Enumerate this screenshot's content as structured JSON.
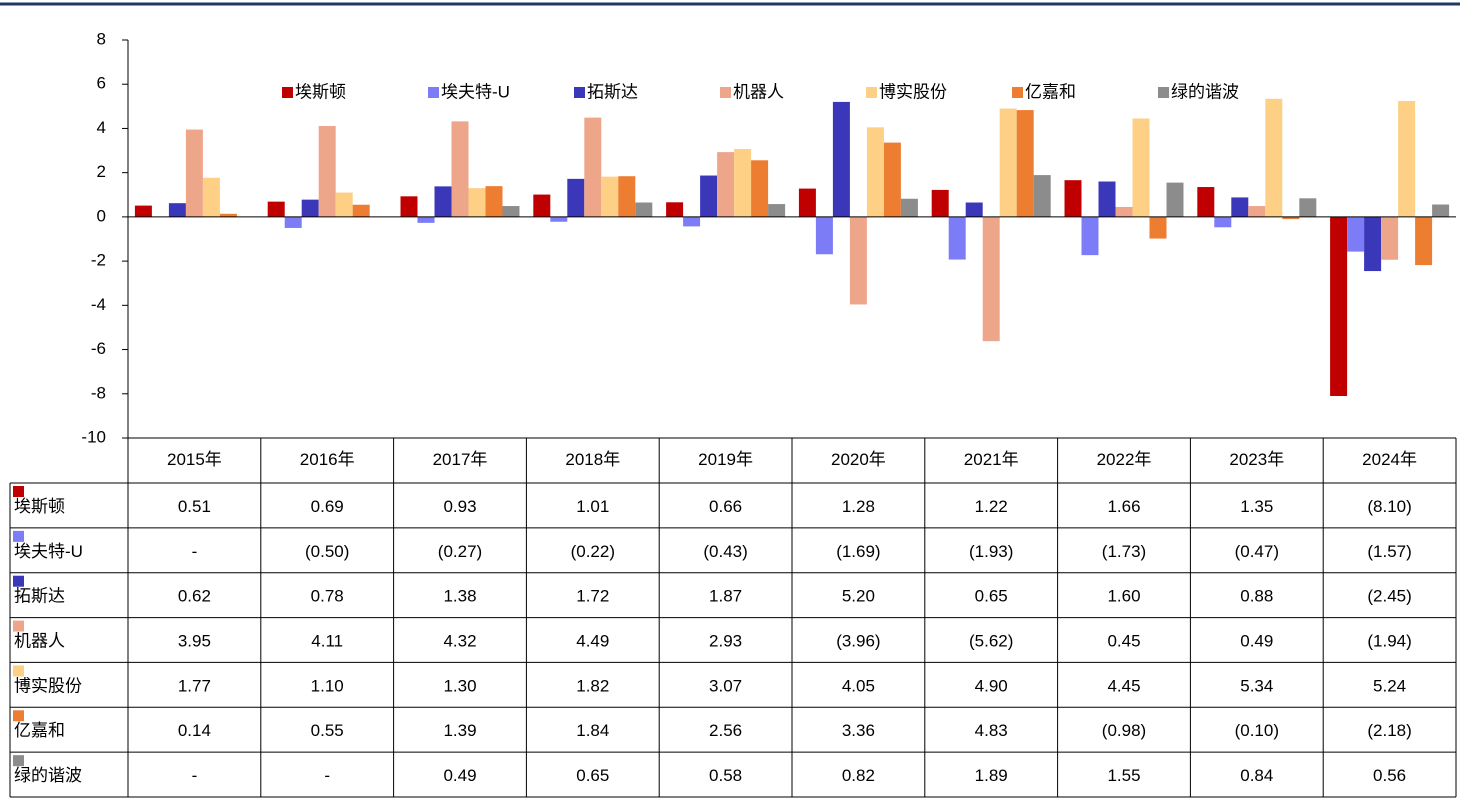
{
  "chart_data": {
    "type": "bar",
    "categories": [
      "2015年",
      "2016年",
      "2017年",
      "2018年",
      "2019年",
      "2020年",
      "2021年",
      "2022年",
      "2023年",
      "2024年"
    ],
    "ylim": [
      -10,
      8
    ],
    "yticks": [
      -10,
      -8,
      -6,
      -4,
      -2,
      0,
      2,
      4,
      6,
      8
    ],
    "series": [
      {
        "name": "埃斯顿",
        "color": "#c00000",
        "values": [
          0.51,
          0.69,
          0.93,
          1.01,
          0.66,
          1.28,
          1.22,
          1.66,
          1.35,
          -8.1
        ],
        "value_labels": [
          "0.51",
          "0.69",
          "0.93",
          "1.01",
          "0.66",
          "1.28",
          "1.22",
          "1.66",
          "1.35",
          "(8.10)"
        ]
      },
      {
        "name": "埃夫特-U",
        "color": "#7c7cf6",
        "values": [
          null,
          -0.5,
          -0.27,
          -0.22,
          -0.43,
          -1.69,
          -1.93,
          -1.73,
          -0.47,
          -1.57
        ],
        "value_labels": [
          "-",
          "(0.50)",
          "(0.27)",
          "(0.22)",
          "(0.43)",
          "(1.69)",
          "(1.93)",
          "(1.73)",
          "(0.47)",
          "(1.57)"
        ]
      },
      {
        "name": "拓斯达",
        "color": "#3b37b9",
        "values": [
          0.62,
          0.78,
          1.38,
          1.72,
          1.87,
          5.2,
          0.65,
          1.6,
          0.88,
          -2.45
        ],
        "value_labels": [
          "0.62",
          "0.78",
          "1.38",
          "1.72",
          "1.87",
          "5.20",
          "0.65",
          "1.60",
          "0.88",
          "(2.45)"
        ]
      },
      {
        "name": "机器人",
        "color": "#eea68b",
        "values": [
          3.95,
          4.11,
          4.32,
          4.49,
          2.93,
          -3.96,
          -5.62,
          0.45,
          0.49,
          -1.94
        ],
        "value_labels": [
          "3.95",
          "4.11",
          "4.32",
          "4.49",
          "2.93",
          "(3.96)",
          "(5.62)",
          "0.45",
          "0.49",
          "(1.94)"
        ]
      },
      {
        "name": "博实股份",
        "color": "#fdd086",
        "values": [
          1.77,
          1.1,
          1.3,
          1.82,
          3.07,
          4.05,
          4.9,
          4.45,
          5.34,
          5.24
        ],
        "value_labels": [
          "1.77",
          "1.10",
          "1.30",
          "1.82",
          "3.07",
          "4.05",
          "4.90",
          "4.45",
          "5.34",
          "5.24"
        ]
      },
      {
        "name": "亿嘉和",
        "color": "#ed7d31",
        "values": [
          0.14,
          0.55,
          1.39,
          1.84,
          2.56,
          3.36,
          4.83,
          -0.98,
          -0.1,
          -2.18
        ],
        "value_labels": [
          "0.14",
          "0.55",
          "1.39",
          "1.84",
          "2.56",
          "3.36",
          "4.83",
          "(0.98)",
          "(0.10)",
          "(2.18)"
        ]
      },
      {
        "name": "绿的谐波",
        "color": "#8c8c8c",
        "values": [
          null,
          null,
          0.49,
          0.65,
          0.58,
          0.82,
          1.89,
          1.55,
          0.84,
          0.56
        ],
        "value_labels": [
          "-",
          "-",
          "0.49",
          "0.65",
          "0.58",
          "0.82",
          "1.89",
          "1.55",
          "0.84",
          "0.56"
        ]
      }
    ]
  }
}
